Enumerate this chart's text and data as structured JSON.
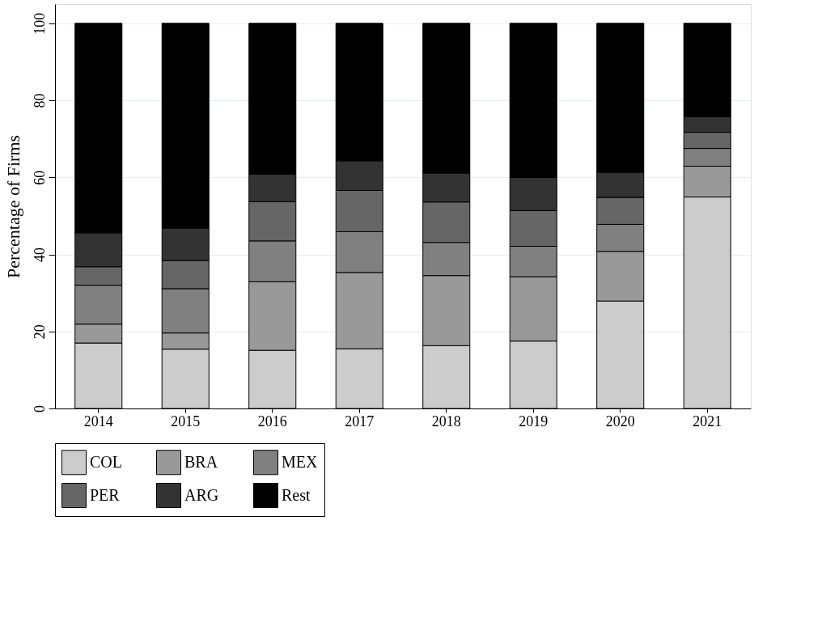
{
  "chart_data": {
    "type": "bar",
    "stacked": true,
    "ylabel": "Percentage of Firms",
    "categories": [
      "2014",
      "2015",
      "2016",
      "2017",
      "2018",
      "2019",
      "2020",
      "2021"
    ],
    "series": [
      {
        "name": "COL",
        "color": "#cccccc",
        "values": [
          17.0,
          15.4,
          15.1,
          15.5,
          16.3,
          17.5,
          27.9,
          54.9
        ]
      },
      {
        "name": "BRA",
        "color": "#999999",
        "values": [
          4.9,
          4.2,
          17.8,
          19.8,
          18.2,
          16.7,
          12.9,
          8.0
        ]
      },
      {
        "name": "MEX",
        "color": "#808080",
        "values": [
          10.1,
          11.5,
          10.6,
          10.6,
          8.6,
          7.9,
          7.0,
          4.6
        ]
      },
      {
        "name": "PER",
        "color": "#666666",
        "values": [
          4.8,
          7.3,
          10.2,
          10.7,
          10.5,
          9.3,
          7.0,
          4.2
        ]
      },
      {
        "name": "ARG",
        "color": "#333333",
        "values": [
          8.8,
          8.4,
          7.1,
          7.7,
          7.5,
          8.6,
          6.5,
          4.1
        ]
      },
      {
        "name": "Rest",
        "color": "#000000",
        "values": [
          54.4,
          53.2,
          39.2,
          35.7,
          38.9,
          40.0,
          38.7,
          24.2
        ]
      }
    ],
    "ylim": [
      0,
      105
    ],
    "yticks": [
      0,
      20,
      40,
      60,
      80,
      100
    ],
    "grid": "y",
    "legend": "bottom"
  }
}
